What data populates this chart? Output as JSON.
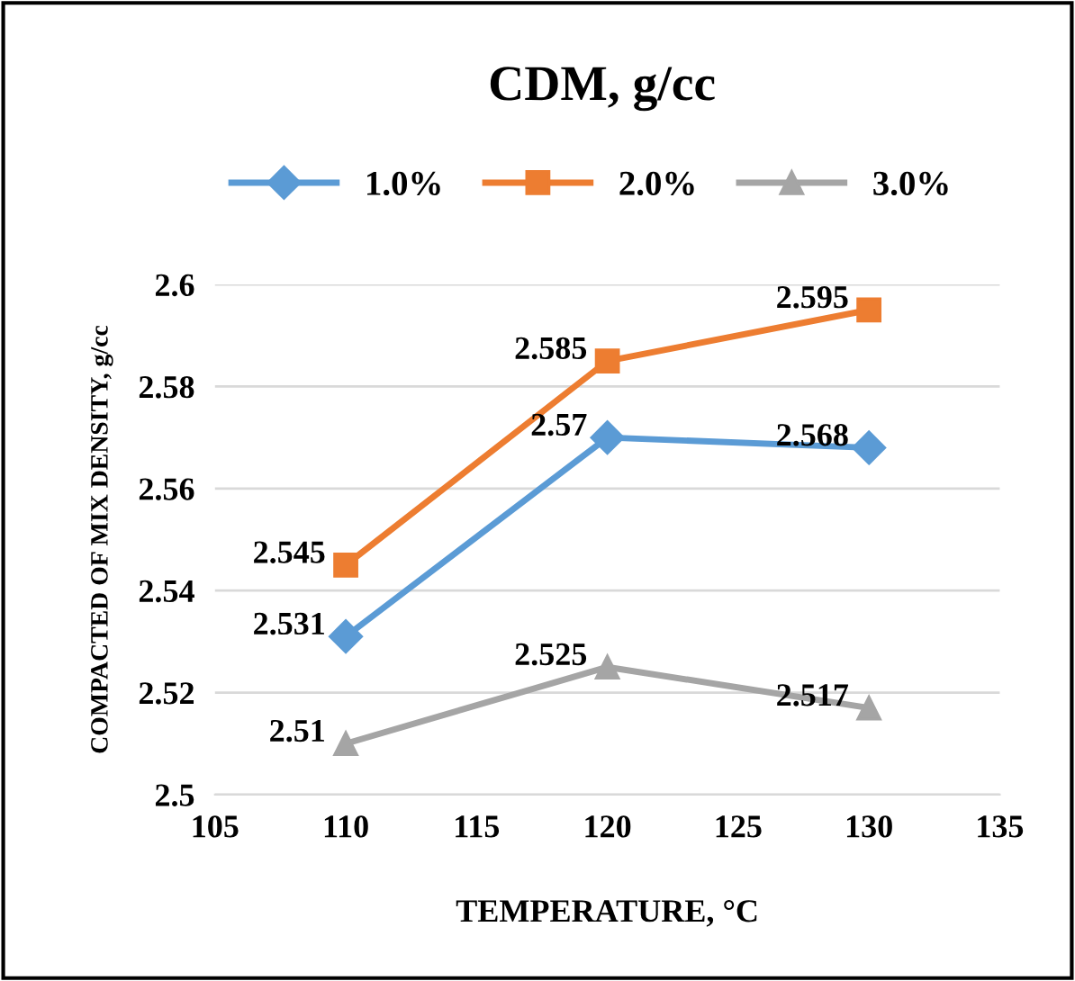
{
  "chart_data": {
    "type": "line",
    "title": "CDM, g/cc",
    "xlabel": "TEMPERATURE, °C",
    "ylabel": "COMPACTED OF MIX DENSITY, g/cc",
    "x": [
      110,
      120,
      130
    ],
    "series": [
      {
        "name": "1.0%",
        "color": "#5b9bd5",
        "marker": "diamond",
        "values": [
          2.531,
          2.57,
          2.568
        ]
      },
      {
        "name": "2.0%",
        "color": "#ed7d31",
        "marker": "square",
        "values": [
          2.545,
          2.585,
          2.595
        ]
      },
      {
        "name": "3.0%",
        "color": "#a5a5a5",
        "marker": "triangle",
        "values": [
          2.51,
          2.525,
          2.517
        ]
      }
    ],
    "xlim": [
      105,
      135
    ],
    "xticks": [
      105,
      110,
      115,
      120,
      125,
      130,
      135
    ],
    "ylim": [
      2.5,
      2.6
    ],
    "yticks": [
      2.5,
      2.52,
      2.54,
      2.56,
      2.58,
      2.6
    ],
    "grid": "y",
    "legend": "top",
    "data_labels": true,
    "line_style": "solid"
  }
}
